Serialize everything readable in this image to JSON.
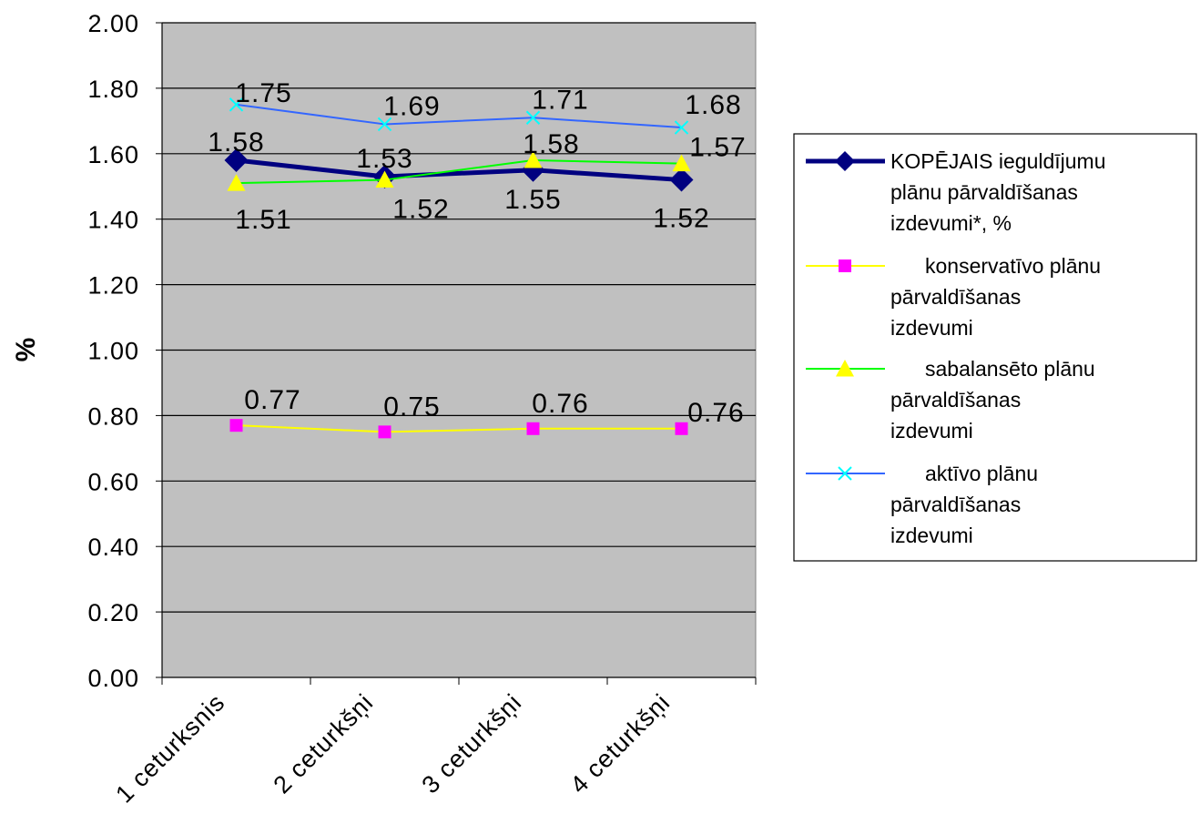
{
  "chart_data": {
    "type": "line",
    "categories": [
      "1 ceturksnis",
      "2 ceturkšņi",
      "3 ceturkšņi",
      "4 ceturkšņi"
    ],
    "ylabel": "%",
    "ylim": [
      0,
      2.0
    ],
    "ytick_step": 0.2,
    "yticks": [
      "0.00",
      "0.20",
      "0.40",
      "0.60",
      "0.80",
      "1.00",
      "1.20",
      "1.40",
      "1.60",
      "1.80",
      "2.00"
    ],
    "grid": true,
    "plot_background": "#c0c0c0",
    "legend_position": "right",
    "series": [
      {
        "name": "KOPĒJAIS ieguldījumu plānu pārvaldīšanas izdevumi*, %",
        "legend_lines": [
          "KOPĒJAIS ieguldījumu",
          "plānu pārvaldīšanas",
          "izdevumi*, %"
        ],
        "values": [
          1.58,
          1.53,
          1.55,
          1.52
        ],
        "labels": [
          "1.58",
          "1.53",
          "1.55",
          "1.52"
        ],
        "color": "#000080",
        "marker": "diamond",
        "marker_color": "#000080"
      },
      {
        "name": "konservatīvo plānu pārvaldīšanas izdevumi",
        "legend_lines": [
          "konservatīvo plānu",
          "pārvaldīšanas",
          "izdevumi"
        ],
        "values": [
          0.77,
          0.75,
          0.76,
          0.76
        ],
        "labels": [
          "0.77",
          "0.75",
          "0.76",
          "0.76"
        ],
        "color": "#ffff00",
        "marker": "square",
        "marker_color": "#ff00ff"
      },
      {
        "name": "sabalansēto plānu pārvaldīšanas izdevumi",
        "legend_lines": [
          "sabalansēto plānu",
          "pārvaldīšanas",
          "izdevumi"
        ],
        "values": [
          1.51,
          1.52,
          1.58,
          1.57
        ],
        "labels": [
          "1.51",
          "1.52",
          "1.58",
          "1.57"
        ],
        "color": "#00ff00",
        "marker": "triangle",
        "marker_color": "#ffff00"
      },
      {
        "name": "aktīvo plānu pārvaldīšanas izdevumi",
        "legend_lines": [
          "aktīvo plānu",
          "pārvaldīšanas",
          "izdevumi"
        ],
        "values": [
          1.75,
          1.69,
          1.71,
          1.68
        ],
        "labels": [
          "1.75",
          "1.69",
          "1.71",
          "1.68"
        ],
        "color": "#3366ff",
        "marker": "x",
        "marker_color": "#00ffff"
      }
    ]
  }
}
